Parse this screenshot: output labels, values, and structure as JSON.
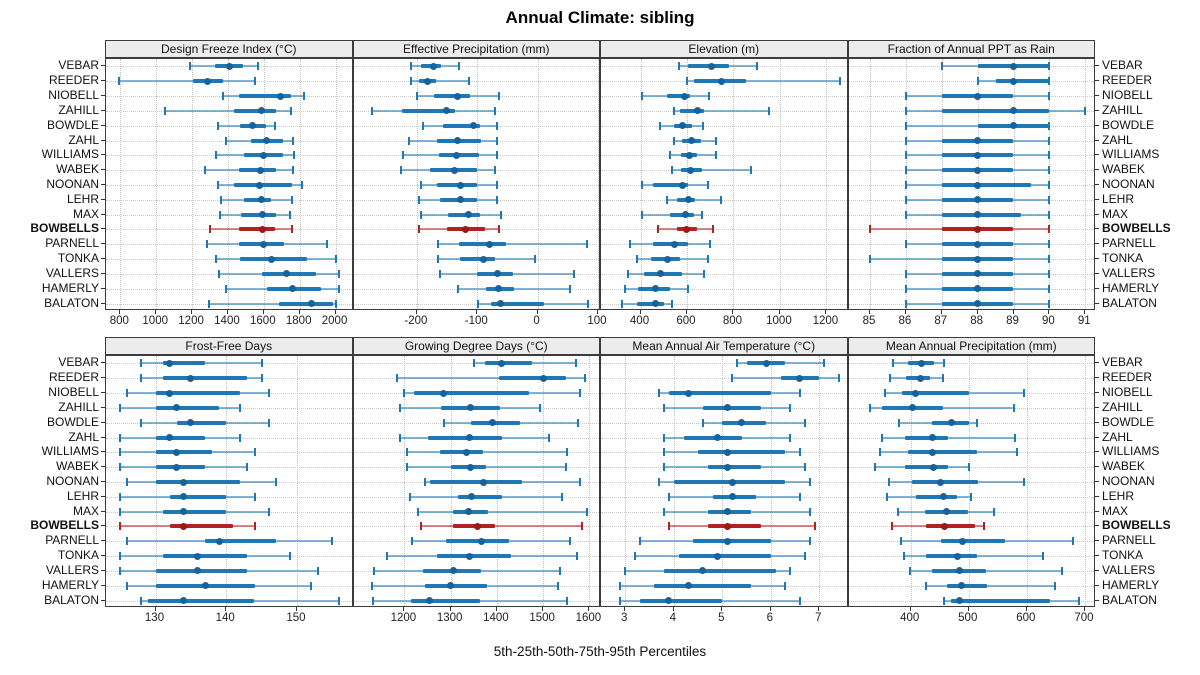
{
  "title": "Annual Climate: sibling",
  "caption": "5th-25th-50th-75th-95th Percentiles",
  "percentile_labels": [
    "5th",
    "25th",
    "50th",
    "75th",
    "95th"
  ],
  "stations": [
    "VEBAR",
    "REEDER",
    "NIOBELL",
    "ZAHILL",
    "BOWDLE",
    "ZAHL",
    "WILLIAMS",
    "WABEK",
    "NOONAN",
    "LEHR",
    "MAX",
    "BOWBELLS",
    "PARNELL",
    "TONKA",
    "VALLERS",
    "HAMERLY",
    "BALATON"
  ],
  "highlight_station": "BOWBELLS",
  "colors": {
    "series_line": "#1f78b4",
    "series_dot": "#14639c",
    "highlight_line": "#b22222",
    "highlight_dot": "#971b16",
    "strip_bg": "#ececec",
    "grid": "#c6c6c6",
    "border": "#3c3c3c"
  },
  "chart_data": [
    {
      "type": "dotplot-percentiles",
      "title": "Design Freeze Index (°C)",
      "xlim": [
        720,
        2100
      ],
      "ticks": [
        800,
        1000,
        1200,
        1400,
        1600,
        1800,
        2000
      ],
      "values": [
        [
          1190,
          1330,
          1410,
          1485,
          1570
        ],
        [
          795,
          1205,
          1285,
          1370,
          1550
        ],
        [
          1370,
          1460,
          1695,
          1750,
          1825
        ],
        [
          1050,
          1435,
          1585,
          1670,
          1750
        ],
        [
          1345,
          1465,
          1535,
          1610,
          1665
        ],
        [
          1390,
          1530,
          1615,
          1705,
          1760
        ],
        [
          1335,
          1490,
          1600,
          1705,
          1770
        ],
        [
          1270,
          1460,
          1580,
          1670,
          1760
        ],
        [
          1345,
          1435,
          1575,
          1755,
          1815
        ],
        [
          1360,
          1490,
          1585,
          1640,
          1755
        ],
        [
          1355,
          1475,
          1595,
          1670,
          1745
        ],
        [
          1300,
          1460,
          1590,
          1665,
          1755
        ],
        [
          1285,
          1460,
          1600,
          1715,
          1955
        ],
        [
          1335,
          1465,
          1640,
          1840,
          2000
        ],
        [
          1350,
          1590,
          1725,
          1890,
          2020
        ],
        [
          1390,
          1615,
          1760,
          1920,
          2020
        ],
        [
          1295,
          1685,
          1865,
          1985,
          2005
        ]
      ]
    },
    {
      "type": "dotplot-percentiles",
      "title": "Effective Precipitation (mm)",
      "xlim": [
        -305,
        105
      ],
      "ticks": [
        -200,
        -100,
        0,
        100
      ],
      "values": [
        [
          -210,
          -193,
          -173,
          -160,
          -131
        ],
        [
          -209,
          -197,
          -183,
          -168,
          -114
        ],
        [
          -199,
          -171,
          -133,
          -112,
          -64
        ],
        [
          -275,
          -224,
          -151,
          -137,
          -70
        ],
        [
          -190,
          -156,
          -107,
          -96,
          -67
        ],
        [
          -213,
          -167,
          -132,
          -93,
          -67
        ],
        [
          -223,
          -163,
          -135,
          -97,
          -67
        ],
        [
          -227,
          -178,
          -138,
          -100,
          -70
        ],
        [
          -194,
          -167,
          -127,
          -101,
          -67
        ],
        [
          -197,
          -161,
          -127,
          -100,
          -67
        ],
        [
          -193,
          -148,
          -115,
          -96,
          -60
        ],
        [
          -197,
          -150,
          -120,
          -87,
          -64
        ],
        [
          -165,
          -131,
          -80,
          -52,
          82
        ],
        [
          -165,
          -128,
          -89,
          -71,
          -4
        ],
        [
          -162,
          -101,
          -67,
          -41,
          61
        ],
        [
          -132,
          -86,
          -64,
          -39,
          54
        ],
        [
          -99,
          -77,
          -62,
          11,
          84
        ]
      ]
    },
    {
      "type": "dotplot-percentiles",
      "title": "Elevation (m)",
      "xlim": [
        230,
        1295
      ],
      "ticks": [
        400,
        600,
        800,
        1000,
        1200
      ],
      "values": [
        [
          565,
          605,
          705,
          780,
          900
        ],
        [
          600,
          630,
          750,
          855,
          1260
        ],
        [
          405,
          515,
          590,
          615,
          695
        ],
        [
          545,
          570,
          645,
          675,
          955
        ],
        [
          485,
          545,
          580,
          620,
          670
        ],
        [
          545,
          580,
          620,
          660,
          725
        ],
        [
          525,
          575,
          610,
          645,
          725
        ],
        [
          535,
          575,
          615,
          665,
          875
        ],
        [
          405,
          455,
          580,
          605,
          690
        ],
        [
          515,
          555,
          605,
          635,
          745
        ],
        [
          405,
          525,
          595,
          630,
          665
        ],
        [
          475,
          557,
          600,
          645,
          710
        ],
        [
          355,
          455,
          545,
          605,
          700
        ],
        [
          385,
          443,
          517,
          570,
          690
        ],
        [
          345,
          417,
          484,
          580,
          675
        ],
        [
          335,
          390,
          464,
          525,
          605
        ],
        [
          320,
          385,
          463,
          500,
          535
        ]
      ]
    },
    {
      "type": "dotplot-percentiles",
      "title": "Fraction of Annual PPT as Rain",
      "xlim": [
        84.4,
        91.3
      ],
      "ticks": [
        85,
        86,
        87,
        88,
        89,
        90,
        91
      ],
      "values": [
        [
          87,
          88,
          89,
          90,
          90
        ],
        [
          88,
          88.5,
          89,
          90,
          90
        ],
        [
          86,
          87,
          88,
          89,
          90
        ],
        [
          86,
          87,
          89,
          90,
          91
        ],
        [
          86,
          88,
          89,
          90,
          90
        ],
        [
          86,
          87,
          88,
          89,
          90
        ],
        [
          86,
          87,
          88,
          89,
          90
        ],
        [
          86,
          87,
          88,
          89,
          90
        ],
        [
          86,
          87,
          88,
          89.5,
          90
        ],
        [
          86,
          87,
          88,
          89,
          90
        ],
        [
          86,
          87,
          88,
          89.2,
          90
        ],
        [
          85,
          87,
          88,
          89,
          90
        ],
        [
          86,
          87,
          88,
          89,
          90
        ],
        [
          85,
          87,
          88,
          89,
          90
        ],
        [
          86,
          87,
          88,
          89,
          90
        ],
        [
          86,
          87,
          88,
          89,
          90
        ],
        [
          86,
          87,
          88,
          89,
          90
        ]
      ]
    },
    {
      "type": "dotplot-percentiles",
      "title": "Frost-Free Days",
      "xlim": [
        123,
        158
      ],
      "ticks": [
        130,
        140,
        150
      ],
      "values": [
        [
          128,
          131,
          132,
          137,
          145
        ],
        [
          128,
          131,
          135,
          143,
          145
        ],
        [
          126,
          130,
          132,
          142,
          146
        ],
        [
          125,
          130,
          133,
          139,
          142
        ],
        [
          128,
          133,
          135,
          140,
          146
        ],
        [
          125,
          130,
          132,
          137,
          142
        ],
        [
          125,
          130,
          133,
          138,
          144
        ],
        [
          125,
          130,
          133,
          137,
          143
        ],
        [
          126,
          130,
          134,
          142,
          147
        ],
        [
          125,
          132,
          134,
          140,
          144
        ],
        [
          125,
          131,
          134,
          140,
          146
        ],
        [
          125,
          132,
          134,
          141,
          144
        ],
        [
          126,
          137,
          139,
          147,
          155
        ],
        [
          125,
          131,
          136,
          143,
          149
        ],
        [
          125,
          130,
          136,
          143,
          153
        ],
        [
          126,
          130,
          137,
          144,
          152
        ],
        [
          128,
          129,
          134,
          144,
          156
        ]
      ]
    },
    {
      "type": "dotplot-percentiles",
      "title": "Growing Degree Days (°C)",
      "xlim": [
        1090,
        1625
      ],
      "ticks": [
        1200,
        1300,
        1400,
        1500,
        1600
      ],
      "values": [
        [
          1350,
          1375,
          1410,
          1475,
          1570
        ],
        [
          1185,
          1405,
          1500,
          1550,
          1590
        ],
        [
          1200,
          1220,
          1285,
          1470,
          1580
        ],
        [
          1190,
          1280,
          1343,
          1406,
          1494
        ],
        [
          1285,
          1345,
          1390,
          1450,
          1575
        ],
        [
          1190,
          1250,
          1340,
          1410,
          1513
        ],
        [
          1205,
          1277,
          1334,
          1370,
          1552
        ],
        [
          1205,
          1300,
          1343,
          1377,
          1550
        ],
        [
          1245,
          1255,
          1372,
          1455,
          1580
        ],
        [
          1213,
          1315,
          1346,
          1410,
          1540
        ],
        [
          1230,
          1304,
          1338,
          1380,
          1595
        ],
        [
          1235,
          1305,
          1357,
          1395,
          1585
        ],
        [
          1216,
          1290,
          1366,
          1427,
          1557
        ],
        [
          1163,
          1270,
          1340,
          1430,
          1573
        ],
        [
          1134,
          1241,
          1306,
          1366,
          1536
        ],
        [
          1130,
          1244,
          1300,
          1379,
          1532
        ],
        [
          1132,
          1215,
          1254,
          1363,
          1552
        ]
      ]
    },
    {
      "type": "dotplot-percentiles",
      "title": "Mean Annual Air Temperature (°C)",
      "xlim": [
        2.5,
        7.6
      ],
      "ticks": [
        3,
        4,
        5,
        6,
        7
      ],
      "values": [
        [
          5.3,
          5.5,
          5.9,
          6.3,
          7.1
        ],
        [
          5.2,
          6.2,
          6.6,
          7.0,
          7.4
        ],
        [
          3.7,
          3.9,
          4.3,
          6.0,
          6.6
        ],
        [
          3.8,
          4.6,
          5.1,
          5.8,
          6.4
        ],
        [
          4.6,
          5.0,
          5.4,
          5.9,
          6.7
        ],
        [
          3.8,
          4.2,
          4.9,
          5.4,
          6.4
        ],
        [
          3.8,
          4.5,
          5.1,
          6.3,
          6.6
        ],
        [
          3.8,
          4.7,
          5.1,
          5.8,
          6.7
        ],
        [
          3.7,
          4.0,
          5.2,
          6.3,
          6.8
        ],
        [
          3.9,
          4.8,
          5.2,
          5.7,
          6.6
        ],
        [
          3.8,
          4.7,
          5.1,
          5.6,
          6.8
        ],
        [
          3.9,
          4.7,
          5.1,
          5.8,
          6.9
        ],
        [
          3.3,
          4.4,
          5.1,
          6.0,
          6.8
        ],
        [
          3.2,
          4.1,
          4.9,
          6.0,
          6.7
        ],
        [
          3.0,
          3.8,
          4.6,
          6.1,
          6.4
        ],
        [
          2.9,
          3.6,
          4.3,
          5.6,
          6.3
        ],
        [
          2.9,
          3.3,
          3.9,
          5.0,
          6.6
        ]
      ]
    },
    {
      "type": "dotplot-percentiles",
      "title": "Mean Annual Precipitation (mm)",
      "xlim": [
        293,
        719
      ],
      "ticks": [
        400,
        500,
        600,
        700
      ],
      "values": [
        [
          370,
          395,
          418,
          440,
          457
        ],
        [
          365,
          392,
          417,
          433,
          456
        ],
        [
          355,
          385,
          409,
          500,
          595
        ],
        [
          330,
          350,
          403,
          456,
          577
        ],
        [
          380,
          437,
          471,
          500,
          514
        ],
        [
          350,
          390,
          437,
          464,
          580
        ],
        [
          348,
          396,
          437,
          515,
          583
        ],
        [
          338,
          390,
          439,
          464,
          501
        ],
        [
          363,
          403,
          452,
          516,
          595
        ],
        [
          359,
          409,
          456,
          480,
          504
        ],
        [
          379,
          425,
          462,
          498,
          543
        ],
        [
          368,
          427,
          458,
          510,
          526
        ],
        [
          383,
          452,
          490,
          563,
          680
        ],
        [
          389,
          427,
          480,
          515,
          628
        ],
        [
          399,
          437,
          484,
          530,
          660
        ],
        [
          426,
          462,
          488,
          532,
          648
        ],
        [
          458,
          469,
          484,
          640,
          690
        ]
      ]
    }
  ]
}
